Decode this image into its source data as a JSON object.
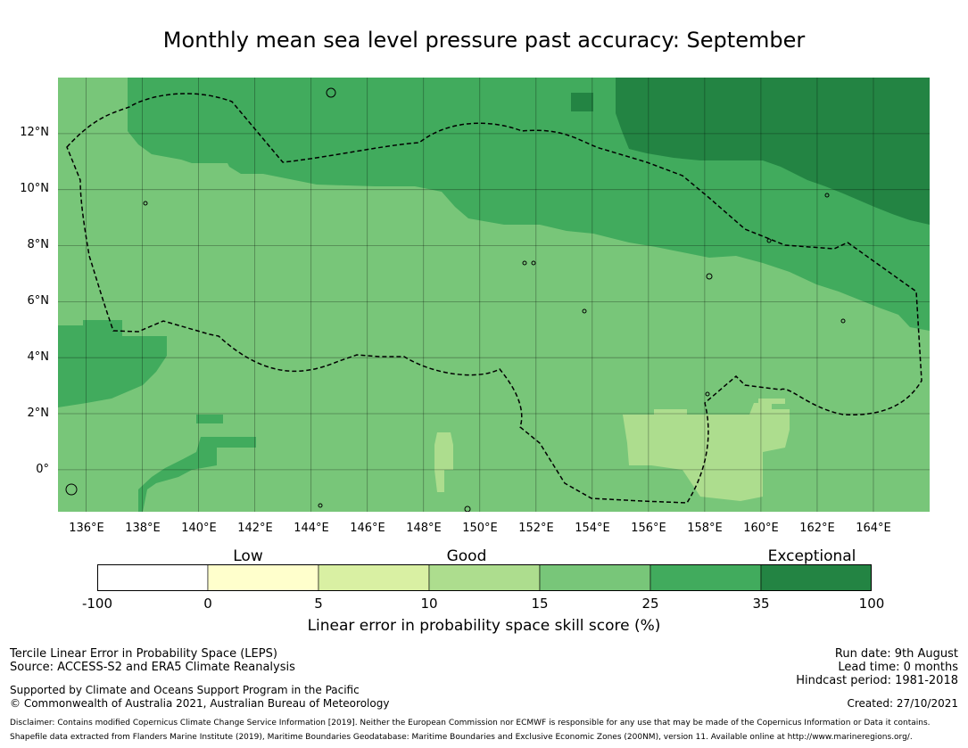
{
  "title": "Monthly mean sea level pressure past accuracy: September",
  "map": {
    "lon_range": [
      135,
      166
    ],
    "lat_range": [
      -1.5,
      14
    ],
    "grid_lons": [
      136,
      138,
      140,
      142,
      144,
      146,
      148,
      150,
      152,
      154,
      156,
      158,
      160,
      162,
      164
    ],
    "grid_lats": [
      0,
      2,
      4,
      6,
      8,
      10,
      12
    ],
    "lat_labels": [
      "12°N",
      "10°N",
      "8°N",
      "6°N",
      "4°N",
      "2°N",
      "0°"
    ],
    "lon_labels": [
      "136°E",
      "138°E",
      "140°E",
      "142°E",
      "144°E",
      "146°E",
      "148°E",
      "150°E",
      "152°E",
      "154°E",
      "156°E",
      "158°E",
      "160°E",
      "162°E",
      "164°E"
    ]
  },
  "colorbar": {
    "category_labels": [
      "Low",
      "Good",
      "Exceptional"
    ],
    "ticks": [
      "-100",
      "0",
      "5",
      "10",
      "15",
      "25",
      "35",
      "100"
    ],
    "colors": [
      "#ffffff",
      "#ffffcc",
      "#d9f0a3",
      "#addd8e",
      "#78c679",
      "#41ab5d",
      "#238443"
    ],
    "label": "Linear error in probability space skill score (%)"
  },
  "footer": {
    "line1": "Tercile Linear Error in Probability Space (LEPS)",
    "line2": "Source: ACCESS-S2 and ERA5 Climate Reanalysis",
    "line3": "Supported by Climate and Oceans Support Program in the Pacific",
    "line4": "© Commonwealth of Australia 2021, Australian Bureau of Meteorology",
    "run_date": "Run date: 9th August",
    "lead_time": "Lead time: 0 months",
    "hindcast": "Hindcast period: 1981-2018",
    "created": "Created: 27/10/2021",
    "disclaimer": "Disclaimer: Contains modified Copernicus Climate Change Service Information [2019]. Neither the European Commission nor ECMWF is responsible for any use that may be made of the Copernicus Information or Data it contains.",
    "shapefile": "Shapefile data extracted from Flanders Marine Institute (2019), Maritime Boundaries Geodatabase: Maritime Boundaries and Exclusive Economic Zones (200NM), version 11. Available online at http://www.marineregions.org/."
  }
}
